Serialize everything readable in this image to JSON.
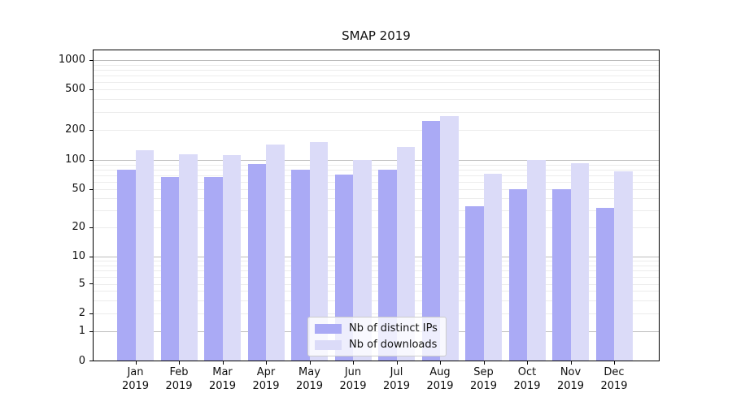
{
  "chart_data": {
    "type": "bar",
    "title": "SMAP 2019",
    "categories": [
      "Jan",
      "Feb",
      "Mar",
      "Apr",
      "May",
      "Jun",
      "Jul",
      "Aug",
      "Sep",
      "Oct",
      "Nov",
      "Dec"
    ],
    "category_year": "2019",
    "series": [
      {
        "name": "Nb of distinct IPs",
        "color": "#aaaaf5",
        "values": [
          80,
          67,
          67,
          91,
          80,
          71,
          79,
          245,
          33,
          50,
          50,
          32
        ]
      },
      {
        "name": "Nb of downloads",
        "color": "#dbdbf8",
        "values": [
          125,
          115,
          113,
          143,
          150,
          100,
          135,
          275,
          72,
          100,
          92,
          77
        ]
      }
    ],
    "y_ticks": [
      0,
      1,
      2,
      5,
      10,
      20,
      50,
      100,
      200,
      500,
      1000
    ],
    "y_minor_gridlines": [
      3,
      4,
      6,
      7,
      8,
      9,
      30,
      40,
      60,
      70,
      80,
      90,
      300,
      400,
      600,
      700,
      800,
      900
    ],
    "y_major_gridlines": [
      1,
      10,
      100,
      1000
    ],
    "y_scale": "symlog",
    "ylim": [
      0,
      1300
    ],
    "grid": "both",
    "legend_position": "bottom-center"
  }
}
